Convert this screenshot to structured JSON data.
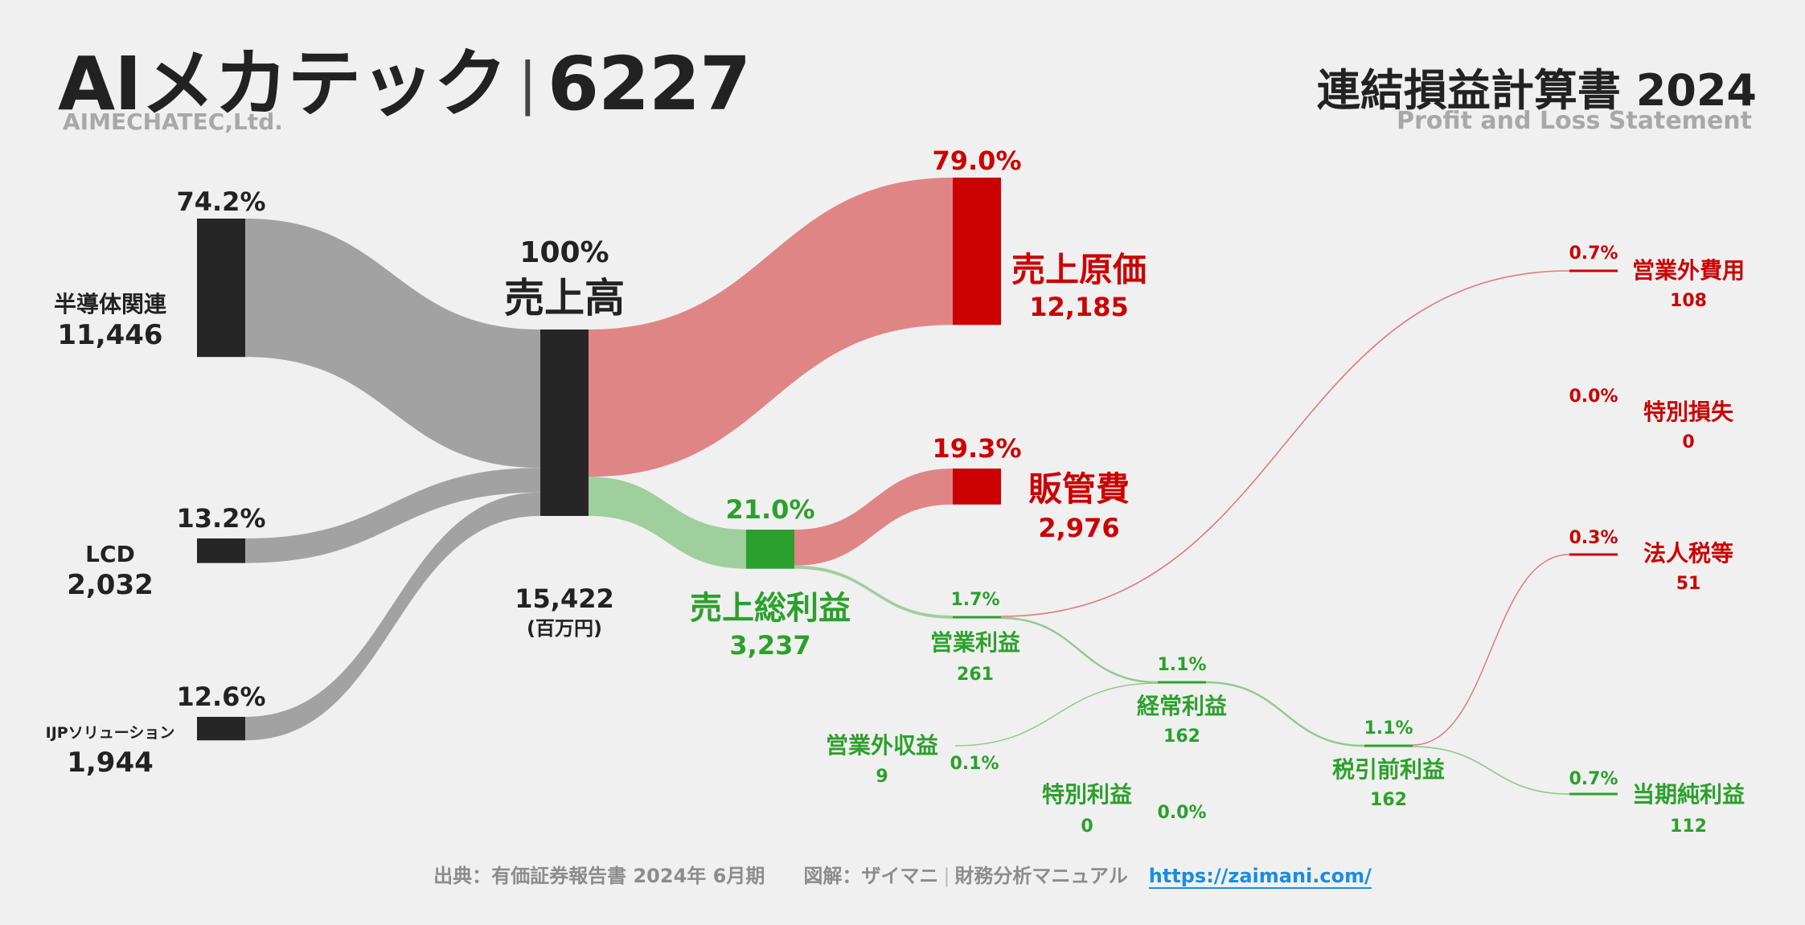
{
  "header": {
    "company_name": "AIメカテック",
    "separator": "|",
    "ticker": "6227",
    "company_en": "AIMECHATEC,Ltd.",
    "statement_title": "連結損益計算書 2024",
    "statement_subtitle": "Profit and Loss Statement"
  },
  "footer": {
    "source": "出典：有価証券報告書 2024年 6月期",
    "credit": "図解：ザイマニ",
    "separator": "|",
    "site_name": "財務分析マニュアル",
    "url": "https://zaimani.com/"
  },
  "colors": {
    "gray_flow": "#a2a2a2",
    "dark_node": "#262626",
    "cost_red": "#cc0000",
    "cost_flow": "#e08585",
    "profit_green": "#2ca02c",
    "profit_flow": "#9fcf9c",
    "thin_red": "#e07b7b",
    "thin_green": "#93c98f",
    "background": "#f0f0f0"
  },
  "chart_data": {
    "type": "sankey",
    "unit": "(百万円)",
    "nodes": [
      {
        "id": "seg1",
        "label": "半導体関連",
        "value": "11,446",
        "pct": "74.2%"
      },
      {
        "id": "seg2",
        "label": "LCD",
        "value": "2,032",
        "pct": "13.2%"
      },
      {
        "id": "seg3",
        "label": "IJPソリューション",
        "value": "1,944",
        "pct": "12.6%"
      },
      {
        "id": "rev",
        "label": "売上高",
        "value": "15,422",
        "pct": "100%"
      },
      {
        "id": "cogs",
        "label": "売上原価",
        "value": "12,185",
        "pct": "79.0%"
      },
      {
        "id": "gp",
        "label": "売上総利益",
        "value": "3,237",
        "pct": "21.0%"
      },
      {
        "id": "sga",
        "label": "販管費",
        "value": "2,976",
        "pct": "19.3%"
      },
      {
        "id": "op",
        "label": "営業利益",
        "value": "261",
        "pct": "1.7%"
      },
      {
        "id": "nonop_exp",
        "label": "営業外費用",
        "value": "108",
        "pct": "0.7%"
      },
      {
        "id": "nonop_inc",
        "label": "営業外収益",
        "value": "9",
        "pct": "0.1%"
      },
      {
        "id": "ord",
        "label": "経常利益",
        "value": "162",
        "pct": "1.1%"
      },
      {
        "id": "sp_loss",
        "label": "特別損失",
        "value": "0",
        "pct": "0.0%"
      },
      {
        "id": "sp_gain",
        "label": "特別利益",
        "value": "0",
        "pct": "0.0%"
      },
      {
        "id": "pretax",
        "label": "税引前利益",
        "value": "162",
        "pct": "1.1%"
      },
      {
        "id": "tax",
        "label": "法人税等",
        "value": "51",
        "pct": "0.3%"
      },
      {
        "id": "net",
        "label": "当期純利益",
        "value": "112",
        "pct": "0.7%"
      }
    ],
    "links": [
      {
        "source": "seg1",
        "target": "rev",
        "value": 11446
      },
      {
        "source": "seg2",
        "target": "rev",
        "value": 2032
      },
      {
        "source": "seg3",
        "target": "rev",
        "value": 1944
      },
      {
        "source": "rev",
        "target": "cogs",
        "value": 12185
      },
      {
        "source": "rev",
        "target": "gp",
        "value": 3237
      },
      {
        "source": "gp",
        "target": "sga",
        "value": 2976
      },
      {
        "source": "gp",
        "target": "op",
        "value": 261
      },
      {
        "source": "op",
        "target": "nonop_exp",
        "value": 108
      },
      {
        "source": "op",
        "target": "ord",
        "value": 162
      },
      {
        "source": "nonop_inc",
        "target": "ord",
        "value": 9
      },
      {
        "source": "ord",
        "target": "pretax",
        "value": 162
      },
      {
        "source": "pretax",
        "target": "tax",
        "value": 51
      },
      {
        "source": "pretax",
        "target": "net",
        "value": 112
      }
    ]
  }
}
